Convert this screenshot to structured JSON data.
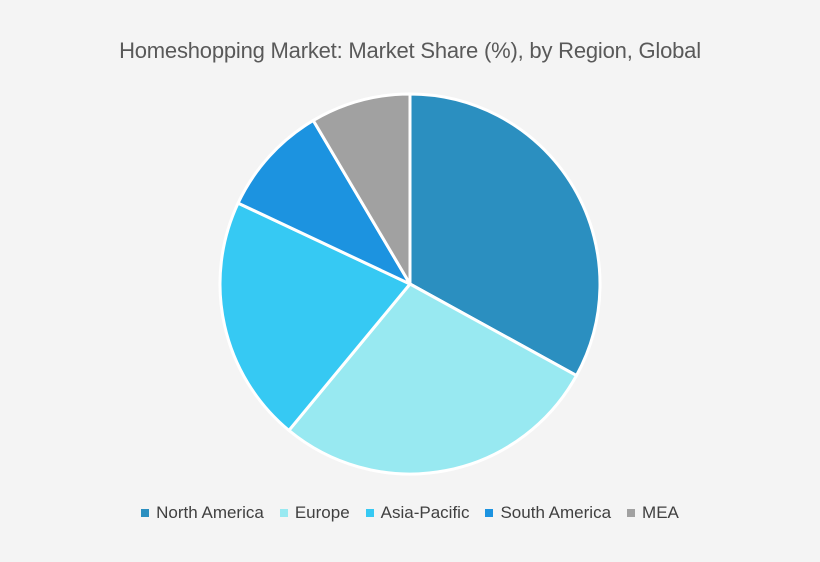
{
  "chart_data": {
    "type": "pie",
    "title": "Homeshopping Market: Market Share (%), by Region, Global",
    "categories": [
      "North America",
      "Europe",
      "Asia-Pacific",
      "South America",
      "MEA"
    ],
    "values": [
      33,
      28,
      21,
      9.5,
      8.5
    ],
    "colors": [
      "#2b8fc0",
      "#98e9f1",
      "#36c9f3",
      "#1c93e0",
      "#a1a1a1"
    ],
    "start_angle_deg": 0,
    "direction": "clockwise",
    "legend": "bottom"
  }
}
